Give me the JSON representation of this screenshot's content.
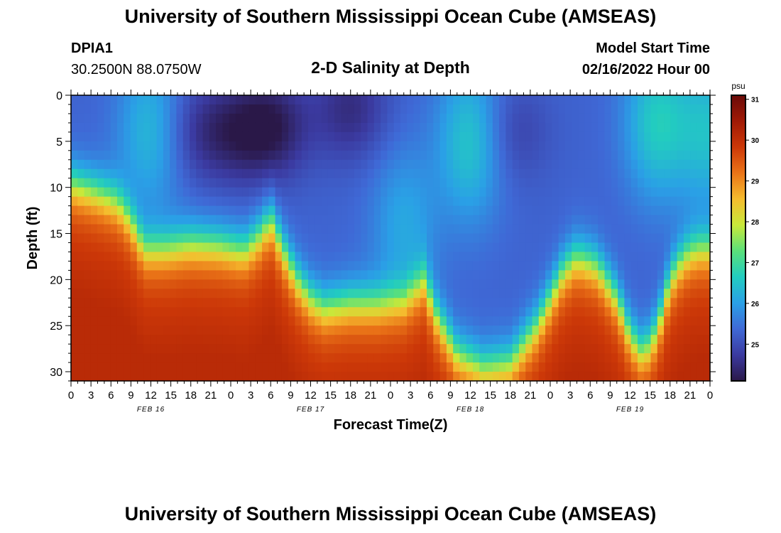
{
  "header": {
    "title": "University of Southern Mississippi Ocean Cube (AMSEAS)",
    "station_id": "DPIA1",
    "location": "30.2500N  88.0750W",
    "subtitle": "2-D Salinity at Depth",
    "model_start_label": "Model Start Time",
    "model_start_value": "02/16/2022 Hour 00"
  },
  "footer": {
    "title": "University of Southern Mississippi Ocean Cube (AMSEAS)"
  },
  "chart_data": {
    "type": "heatmap",
    "title": "2-D Salinity at Depth",
    "xlabel": "Forecast Time(Z)",
    "ylabel": "Depth (ft)",
    "x_hours_range": [
      0,
      96
    ],
    "y_range": [
      0,
      31
    ],
    "x_tick_labels": [
      "0",
      "3",
      "6",
      "9",
      "12",
      "15",
      "18",
      "21",
      "0",
      "3",
      "6",
      "9",
      "12",
      "15",
      "18",
      "21",
      "0",
      "3",
      "6",
      "9",
      "12",
      "15",
      "18",
      "21",
      "0",
      "3",
      "6",
      "9",
      "12",
      "15",
      "18",
      "21",
      "0"
    ],
    "y_tick_labels": [
      "0",
      "5",
      "10",
      "15",
      "20",
      "25",
      "30"
    ],
    "y_tick_values": [
      0,
      5,
      10,
      15,
      20,
      25,
      30
    ],
    "day_labels": [
      {
        "text": "FEB 16",
        "hour": 12
      },
      {
        "text": "FEB 17",
        "hour": 36
      },
      {
        "text": "FEB 18",
        "hour": 60
      },
      {
        "text": "FEB 19",
        "hour": 84
      }
    ],
    "colorbar": {
      "unit": "psu",
      "min": 24.1,
      "max": 31.1,
      "tick_labels": [
        "31",
        "30",
        "29",
        "28",
        "27",
        "26",
        "25"
      ],
      "tick_values": [
        31,
        30,
        29,
        28,
        27,
        26,
        25
      ],
      "colors": [
        "#2a1848",
        "#3b3aa0",
        "#3f69d6",
        "#2aa0e6",
        "#22ccc0",
        "#5ae07a",
        "#c8e83a",
        "#f5bc2e",
        "#ea7418",
        "#cc3808",
        "#a01a06",
        "#6a0a08"
      ]
    },
    "surface_value": 25.3,
    "bottom_value": 29.6,
    "halocline_depth_by_hour": [
      [
        0,
        9.5
      ],
      [
        4,
        10.5
      ],
      [
        7,
        11.5
      ],
      [
        9,
        13.5
      ],
      [
        11,
        16.5
      ],
      [
        14,
        16.5
      ],
      [
        18,
        16.0
      ],
      [
        22,
        16.2
      ],
      [
        26,
        16.8
      ],
      [
        28,
        15.5
      ],
      [
        30,
        13.5
      ],
      [
        32,
        17.0
      ],
      [
        34,
        20.0
      ],
      [
        36,
        22.0
      ],
      [
        38,
        23.0
      ],
      [
        42,
        22.5
      ],
      [
        46,
        22.5
      ],
      [
        50,
        22.0
      ],
      [
        53,
        20.0
      ],
      [
        55,
        24.0
      ],
      [
        58,
        28.0
      ],
      [
        62,
        29.5
      ],
      [
        66,
        29.0
      ],
      [
        70,
        25.0
      ],
      [
        74,
        19.0
      ],
      [
        76,
        17.5
      ],
      [
        79,
        18.5
      ],
      [
        82,
        22.0
      ],
      [
        84,
        26.0
      ],
      [
        86,
        28.0
      ],
      [
        88,
        25.5
      ],
      [
        90,
        20.0
      ],
      [
        92,
        17.5
      ],
      [
        94,
        16.5
      ],
      [
        96,
        16.5
      ]
    ],
    "halocline_thickness_ft": 6,
    "fresh_anomalies": [
      {
        "hour": 30,
        "depth": 3.5,
        "amount": 1.1
      },
      {
        "hour": 24,
        "depth": 4.0,
        "amount": 0.7
      },
      {
        "hour": 42,
        "depth": 1.5,
        "amount": 0.8
      },
      {
        "hour": 18,
        "depth": 4.0,
        "amount": 0.5
      },
      {
        "hour": 66,
        "depth": 4.0,
        "amount": 0.5
      }
    ],
    "saline_anomalies": [
      {
        "hour": 12,
        "depth": 4.0,
        "amount": 1.1
      },
      {
        "hour": 60,
        "depth": 5.0,
        "amount": 1.3
      },
      {
        "hour": 88,
        "depth": 3.0,
        "amount": 1.3
      },
      {
        "hour": 96,
        "depth": 4.0,
        "amount": 1.1
      },
      {
        "hour": 50,
        "depth": 14.0,
        "amount": 0.8
      }
    ]
  }
}
